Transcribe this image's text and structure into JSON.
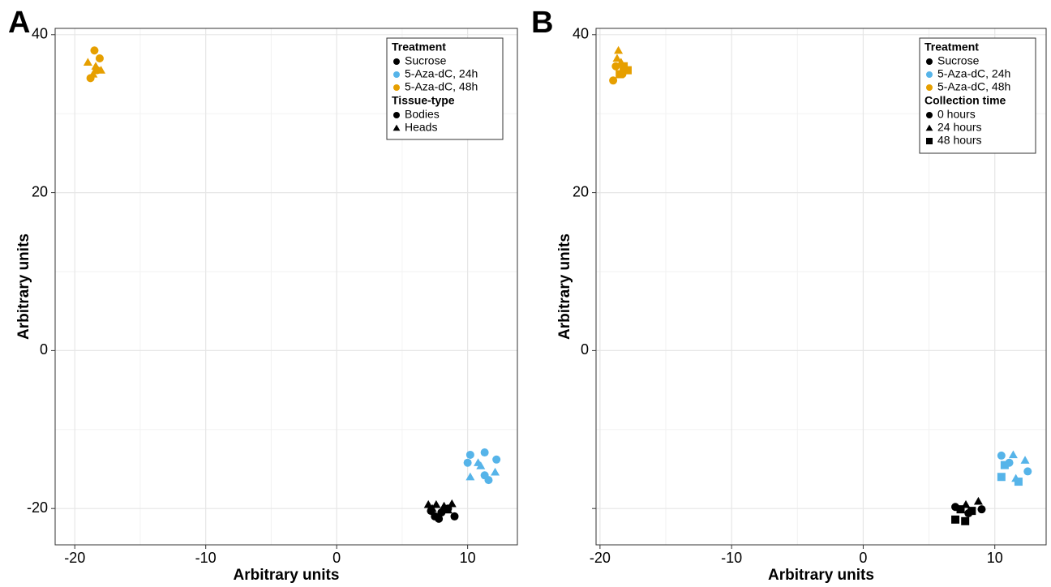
{
  "chart_data": [
    {
      "type": "scatter",
      "panel_label": "A",
      "xlabel": "Arbitrary units",
      "ylabel": "Arbitrary units",
      "xlim": [
        -21.5,
        13.8
      ],
      "ylim": [
        -24.6,
        40.8
      ],
      "xticks": [
        -20,
        -10,
        0,
        10
      ],
      "yticks": [
        -20,
        0,
        20,
        40
      ],
      "minor_xgrid": [
        -15,
        -5,
        5
      ],
      "minor_ygrid": [
        -10,
        10,
        30
      ],
      "grid": true,
      "legend_position": "top-right",
      "legend": [
        {
          "title": "Treatment",
          "items": [
            {
              "label": "Sucrose",
              "color": "#000000",
              "shape": "circle"
            },
            {
              "label": "5-Aza-dC, 24h",
              "color": "#56b4e9",
              "shape": "circle"
            },
            {
              "label": "5-Aza-dC, 48h",
              "color": "#e69f00",
              "shape": "circle"
            }
          ]
        },
        {
          "title": "Tissue-type",
          "items": [
            {
              "label": "Bodies",
              "color": "#000000",
              "shape": "circle"
            },
            {
              "label": "Heads",
              "color": "#000000",
              "shape": "triangle"
            }
          ]
        }
      ],
      "series": [
        {
          "color": "#e69f00",
          "shape": "circle",
          "x": [
            -18.5,
            -18.8,
            -18.3,
            -18.1
          ],
          "y": [
            38,
            34.5,
            35.5,
            37
          ]
        },
        {
          "color": "#e69f00",
          "shape": "triangle",
          "x": [
            -19,
            -18.4,
            -18,
            -18.6
          ],
          "y": [
            36.5,
            36,
            35.5,
            35
          ]
        },
        {
          "color": "#56b4e9",
          "shape": "circle",
          "x": [
            10.2,
            11.3,
            12.2,
            10.0,
            11.3,
            11.6
          ],
          "y": [
            -13.2,
            -12.9,
            -13.8,
            -14.2,
            -15.8,
            -16.4
          ]
        },
        {
          "color": "#56b4e9",
          "shape": "triangle",
          "x": [
            10.8,
            12.1,
            10.2,
            11.0
          ],
          "y": [
            -14.2,
            -15.4,
            -16.0,
            -14.6
          ]
        },
        {
          "color": "#000000",
          "shape": "circle",
          "x": [
            7.5,
            8,
            9,
            8.5,
            7.2,
            7.8
          ],
          "y": [
            -21,
            -20.5,
            -21,
            -20,
            -20.3,
            -21.3
          ]
        },
        {
          "color": "#000000",
          "shape": "triangle",
          "x": [
            7,
            7.6,
            8.2,
            8.8,
            7.3,
            8.5
          ],
          "y": [
            -19.5,
            -19.5,
            -19.7,
            -19.4,
            -20,
            -20.2
          ]
        }
      ]
    },
    {
      "type": "scatter",
      "panel_label": "B",
      "xlabel": "Arbitrary units",
      "ylabel": "Arbitrary units",
      "xlim": [
        -20.3,
        13.9
      ],
      "ylim": [
        -24.6,
        40.8
      ],
      "xticks": [
        -20,
        -10,
        0,
        10
      ],
      "yticks": [
        {
          "value": -20,
          "label": null
        },
        0,
        20,
        40
      ],
      "minor_xgrid": [
        -15,
        -5,
        5
      ],
      "minor_ygrid": [
        -10,
        10,
        30
      ],
      "grid": true,
      "legend_position": "top-right",
      "legend": [
        {
          "title": "Treatment",
          "items": [
            {
              "label": "Sucrose",
              "color": "#000000",
              "shape": "circle"
            },
            {
              "label": "5-Aza-dC, 24h",
              "color": "#56b4e9",
              "shape": "circle"
            },
            {
              "label": "5-Aza-dC, 48h",
              "color": "#e69f00",
              "shape": "circle"
            }
          ]
        },
        {
          "title": "Collection time",
          "items": [
            {
              "label": "0 hours",
              "color": "#000000",
              "shape": "circle"
            },
            {
              "label": "24 hours",
              "color": "#000000",
              "shape": "triangle"
            },
            {
              "label": "48 hours",
              "color": "#000000",
              "shape": "square"
            }
          ]
        }
      ],
      "series": [
        {
          "color": "#e69f00",
          "shape": "circle",
          "x": [
            -18.8,
            -19,
            -18.3
          ],
          "y": [
            36,
            34.2,
            35
          ]
        },
        {
          "color": "#e69f00",
          "shape": "triangle",
          "x": [
            -18.6,
            -18.7,
            -18.4
          ],
          "y": [
            38,
            37,
            36.5
          ]
        },
        {
          "color": "#e69f00",
          "shape": "square",
          "x": [
            -17.9,
            -18.2,
            -18.5
          ],
          "y": [
            35.5,
            36,
            35
          ]
        },
        {
          "color": "#56b4e9",
          "shape": "circle",
          "x": [
            10.5,
            12.5,
            11.1
          ],
          "y": [
            -13.3,
            -15.3,
            -14.2
          ]
        },
        {
          "color": "#56b4e9",
          "shape": "triangle",
          "x": [
            11.4,
            12.3,
            11.6
          ],
          "y": [
            -13.2,
            -13.9,
            -16.2
          ]
        },
        {
          "color": "#56b4e9",
          "shape": "square",
          "x": [
            10.5,
            11.8,
            10.75
          ],
          "y": [
            -16.0,
            -16.6,
            -14.5
          ]
        },
        {
          "color": "#000000",
          "shape": "circle",
          "x": [
            7.0,
            8.0,
            9.0
          ],
          "y": [
            -19.8,
            -20.6,
            -20.1
          ]
        },
        {
          "color": "#000000",
          "shape": "triangle",
          "x": [
            8.75,
            7.8
          ],
          "y": [
            -19.1,
            -19.5
          ]
        },
        {
          "color": "#000000",
          "shape": "square",
          "x": [
            7.0,
            7.75,
            8.25,
            7.4
          ],
          "y": [
            -21.4,
            -21.6,
            -20.3,
            -20.1
          ]
        }
      ]
    }
  ]
}
